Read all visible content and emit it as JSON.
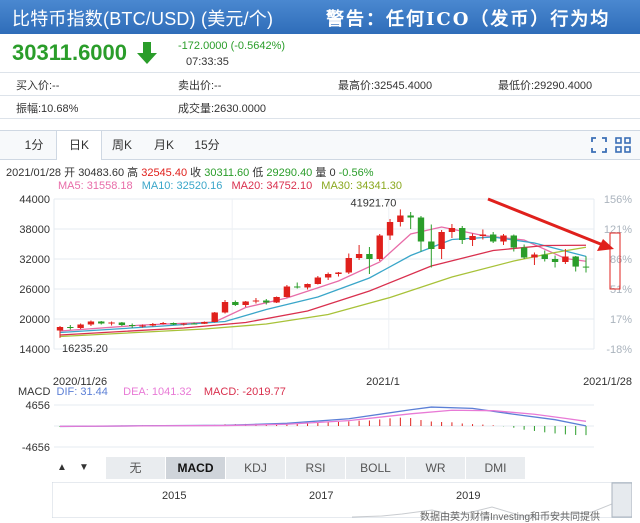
{
  "header": {
    "title": "比特币指数(BTC/USD) (美元/个)",
    "warning": "警告：任何ICO（发币）行为均"
  },
  "quote": {
    "price": "30311.6000",
    "change": "-172.0000 (-0.5642%)",
    "time": "07:33:35"
  },
  "info": {
    "buy": "买入价:--",
    "sell": "卖出价:--",
    "high": "最高价:32545.4000",
    "low": "最低价:29290.4000",
    "amplitude": "振幅:10.68%",
    "volume": "成交量:2630.0000"
  },
  "tabs": [
    "1分",
    "日K",
    "周K",
    "月K",
    "15分"
  ],
  "ohlc": {
    "date": "2021/01/28",
    "open_label": "开",
    "open": "30483.60",
    "high_label": "高",
    "high": "32545.40",
    "close_label": "收",
    "close": "30311.60",
    "low_label": "低",
    "low": "29290.40",
    "vol_label": "量",
    "vol": "0",
    "pct": "-0.56%"
  },
  "ma": {
    "ma5": "MA5: 31558.18",
    "ma10": "MA10: 32520.16",
    "ma20": "MA20: 34752.10",
    "ma30": "MA30: 34341.30"
  },
  "macd": {
    "label": "MACD",
    "dif": "DIF: 31.44",
    "dea": "DEA: 1041.32",
    "macd": "MACD: -2019.77",
    "ytick_top": "4656",
    "ytick_bottom": "-4656"
  },
  "indicator_buttons": [
    "无",
    "MACD",
    "KDJ",
    "RSI",
    "BOLL",
    "WR",
    "DMI"
  ],
  "indicator_selected": "MACD",
  "timeline_years": [
    "2015",
    "2017",
    "2019"
  ],
  "watermark": "数据由英为财情Investing和币安共同提供",
  "colors": {
    "up": "#e0201c",
    "down": "#2a9d2a",
    "ma5": "#e86ca8",
    "ma10": "#3aa6c9",
    "ma20": "#d9304e",
    "ma30": "#a8c239",
    "dif": "#5b7fd6",
    "dea": "#e87ad6",
    "macd_label": "#d9304e"
  },
  "chart_data": {
    "type": "candlestick",
    "y_ticks": [
      "44000",
      "38000",
      "32000",
      "26000",
      "20000",
      "14000"
    ],
    "y_range": [
      14000,
      44000
    ],
    "pct_ticks": [
      "156%",
      "121%",
      "86%",
      "51%",
      "17%",
      "-18%"
    ],
    "x_labels": [
      "2020/11/26",
      "2021/1",
      "2021/1/28"
    ],
    "annotations": {
      "max": "41921.70",
      "min": "16235.20"
    },
    "candles": [
      [
        17700,
        18600,
        16235,
        18400
      ],
      [
        18400,
        18800,
        17900,
        18200
      ],
      [
        18200,
        19100,
        18000,
        18900
      ],
      [
        18900,
        19700,
        18600,
        19500
      ],
      [
        19500,
        19600,
        18900,
        19100
      ],
      [
        19100,
        19500,
        18700,
        19300
      ],
      [
        19300,
        19400,
        18600,
        18800
      ],
      [
        18800,
        19100,
        18200,
        18600
      ],
      [
        18600,
        18900,
        18300,
        18700
      ],
      [
        18700,
        19200,
        18500,
        19000
      ],
      [
        19000,
        19400,
        18900,
        19200
      ],
      [
        19200,
        19300,
        18800,
        18900
      ],
      [
        18900,
        19200,
        18700,
        19100
      ],
      [
        19100,
        19300,
        18900,
        19050
      ],
      [
        19050,
        19500,
        19000,
        19400
      ],
      [
        19400,
        21400,
        19300,
        21300
      ],
      [
        21300,
        23800,
        21100,
        23400
      ],
      [
        23400,
        23700,
        22600,
        22800
      ],
      [
        22800,
        23600,
        22400,
        23500
      ],
      [
        23500,
        24200,
        23100,
        23700
      ],
      [
        23700,
        24000,
        22900,
        23300
      ],
      [
        23300,
        24500,
        23200,
        24400
      ],
      [
        24400,
        26800,
        24300,
        26500
      ],
      [
        26500,
        27300,
        26100,
        26300
      ],
      [
        26300,
        27100,
        25900,
        27000
      ],
      [
        27000,
        28600,
        26900,
        28300
      ],
      [
        28300,
        29300,
        27800,
        29000
      ],
      [
        29000,
        29400,
        28500,
        29300
      ],
      [
        29300,
        33100,
        29000,
        32200
      ],
      [
        32200,
        34800,
        31800,
        33000
      ],
      [
        33000,
        34400,
        29000,
        32000
      ],
      [
        32000,
        37000,
        31600,
        36700
      ],
      [
        36700,
        40000,
        35800,
        39400
      ],
      [
        39400,
        41921.7,
        38500,
        40700
      ],
      [
        40700,
        41400,
        38000,
        40300
      ],
      [
        40300,
        40600,
        33500,
        35500
      ],
      [
        35500,
        38900,
        30300,
        34000
      ],
      [
        34000,
        37800,
        32000,
        37400
      ],
      [
        37400,
        39000,
        36200,
        38200
      ],
      [
        38200,
        38600,
        35000,
        35800
      ],
      [
        35800,
        37100,
        34600,
        36600
      ],
      [
        36600,
        37900,
        35900,
        36900
      ],
      [
        36900,
        37400,
        35200,
        35500
      ],
      [
        35500,
        37000,
        34800,
        36700
      ],
      [
        36700,
        36900,
        33500,
        34300
      ],
      [
        34300,
        34900,
        32000,
        32300
      ],
      [
        32300,
        33300,
        30800,
        32900
      ],
      [
        32900,
        33700,
        31500,
        32000
      ],
      [
        32000,
        32700,
        30300,
        31400
      ],
      [
        31400,
        34000,
        31000,
        32500
      ],
      [
        32500,
        32600,
        29500,
        30483.6
      ],
      [
        30483.6,
        32545.4,
        29290.4,
        30311.6
      ]
    ],
    "ma_series": {
      "ma5": [
        [
          0,
          17600
        ],
        [
          8,
          18800
        ],
        [
          15,
          19400
        ],
        [
          18,
          22300
        ],
        [
          22,
          24200
        ],
        [
          27,
          27600
        ],
        [
          31,
          31400
        ],
        [
          34,
          37000
        ],
        [
          37,
          38400
        ],
        [
          41,
          36700
        ],
        [
          45,
          35800
        ],
        [
          49,
          32100
        ],
        [
          51,
          31558
        ]
      ],
      "ma10": [
        [
          0,
          17300
        ],
        [
          10,
          18600
        ],
        [
          16,
          19500
        ],
        [
          20,
          21900
        ],
        [
          25,
          24400
        ],
        [
          30,
          28200
        ],
        [
          34,
          32700
        ],
        [
          38,
          35900
        ],
        [
          42,
          36400
        ],
        [
          46,
          35200
        ],
        [
          51,
          32520
        ]
      ],
      "ma20": [
        [
          0,
          16800
        ],
        [
          12,
          18200
        ],
        [
          18,
          19300
        ],
        [
          24,
          21600
        ],
        [
          30,
          25600
        ],
        [
          36,
          30600
        ],
        [
          42,
          33700
        ],
        [
          47,
          34700
        ],
        [
          51,
          34752
        ]
      ],
      "ma30": [
        [
          0,
          16500
        ],
        [
          14,
          18000
        ],
        [
          20,
          19000
        ],
        [
          26,
          20900
        ],
        [
          32,
          24300
        ],
        [
          38,
          28400
        ],
        [
          44,
          31600
        ],
        [
          48,
          33300
        ],
        [
          51,
          34341
        ]
      ]
    },
    "macd_histogram": [
      -200,
      -150,
      -80,
      40,
      90,
      110,
      130,
      120,
      150,
      170,
      180,
      160,
      150,
      140,
      120,
      240,
      380,
      420,
      460,
      480,
      470,
      520,
      620,
      680,
      740,
      820,
      880,
      900,
      1020,
      1180,
      1220,
      1450,
      1700,
      1850,
      1760,
      1320,
      1000,
      880,
      820,
      560,
      420,
      320,
      160,
      -60,
      -380,
      -820,
      -1100,
      -1400,
      -1650,
      -1860,
      -2000,
      -2020
    ],
    "dif": [
      [
        0,
        -100
      ],
      [
        10,
        80
      ],
      [
        16,
        150
      ],
      [
        22,
        600
      ],
      [
        28,
        1600
      ],
      [
        34,
        3600
      ],
      [
        36,
        4200
      ],
      [
        40,
        3900
      ],
      [
        44,
        2600
      ],
      [
        48,
        1400
      ],
      [
        51,
        31
      ]
    ],
    "dea": [
      [
        0,
        -80
      ],
      [
        10,
        50
      ],
      [
        16,
        100
      ],
      [
        22,
        380
      ],
      [
        28,
        1200
      ],
      [
        34,
        2700
      ],
      [
        38,
        3500
      ],
      [
        42,
        3400
      ],
      [
        46,
        2600
      ],
      [
        49,
        1700
      ],
      [
        51,
        1041
      ]
    ],
    "macd_range": [
      -4656,
      4656
    ]
  }
}
